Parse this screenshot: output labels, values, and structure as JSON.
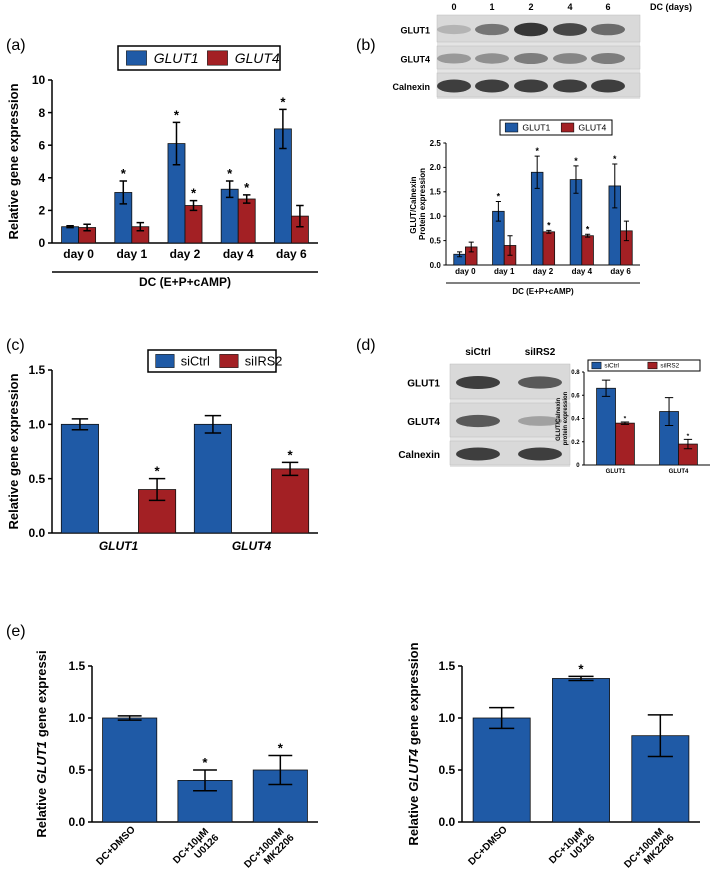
{
  "panels": [
    "(a)",
    "(b)",
    "(c)",
    "(d)",
    "(e)"
  ],
  "blots": [
    {
      "columns_title": "DC (days)",
      "columns": [
        "0",
        "1",
        "2",
        "4",
        "6"
      ],
      "rows": [
        "GLUT1",
        "GLUT4",
        "Calnexin"
      ]
    },
    {
      "columns": [
        "siCtrl",
        "siIRS2"
      ],
      "rows": [
        "GLUT1",
        "GLUT4",
        "Calnexin"
      ]
    }
  ],
  "chart_data": [
    {
      "type": "bar",
      "categories": [
        "day 0",
        "day 1",
        "day 2",
        "day 4",
        "day 6"
      ],
      "ylabel": "Relative gene expression",
      "xlabel": "DC (E+P+cAMP)",
      "ylim": [
        0,
        10
      ],
      "yticks": [
        0,
        2,
        4,
        6,
        8,
        10
      ],
      "series": [
        {
          "name": "GLUT1",
          "color": "#1f5aa6",
          "values": [
            1.0,
            3.1,
            6.1,
            3.3,
            7.0
          ],
          "errors": [
            0.06,
            0.7,
            1.3,
            0.5,
            1.2
          ],
          "annotations": [
            null,
            "*",
            "*",
            "*",
            "*"
          ]
        },
        {
          "name": "GLUT4",
          "color": "#a32024",
          "values": [
            0.95,
            1.0,
            2.3,
            2.7,
            1.65
          ],
          "errors": [
            0.2,
            0.25,
            0.3,
            0.25,
            0.65
          ],
          "annotations": [
            null,
            null,
            "*",
            "*",
            null
          ]
        }
      ]
    },
    {
      "type": "bar",
      "categories": [
        "day 0",
        "day 1",
        "day 2",
        "day 4",
        "day 6"
      ],
      "ylabel": "GLUT/Calnexin Protein expression",
      "xlabel": "DC (E+P+cAMP)",
      "ylim": [
        0,
        2.5
      ],
      "yticks": [
        {
          "value": 0,
          "label": "0.0"
        },
        0.5,
        {
          "value": 1,
          "label": "1.0"
        },
        1.5,
        {
          "value": 2,
          "label": "2.0"
        },
        2.5
      ],
      "series": [
        {
          "name": "GLUT1",
          "color": "#1f5aa6",
          "values": [
            0.22,
            1.1,
            1.9,
            1.75,
            1.62
          ],
          "errors": [
            0.05,
            0.2,
            0.33,
            0.28,
            0.45
          ],
          "annotations": [
            null,
            "*",
            "*",
            "*",
            "*"
          ]
        },
        {
          "name": "GLUT4",
          "color": "#a32024",
          "values": [
            0.37,
            0.4,
            0.68,
            0.6,
            0.7
          ],
          "errors": [
            0.1,
            0.2,
            0.03,
            0.03,
            0.2
          ],
          "annotations": [
            null,
            null,
            "*",
            "*",
            null
          ]
        }
      ]
    },
    {
      "type": "bar",
      "categories": [
        "GLUT1",
        "GLUT4"
      ],
      "ylabel": "Relative gene expression",
      "ylim": [
        0,
        1.5
      ],
      "yticks": [
        {
          "value": 0,
          "label": "0.0"
        },
        0.5,
        {
          "value": 1,
          "label": "1.0"
        },
        1.5
      ],
      "series": [
        {
          "name": "siCtrl",
          "color": "#1f5aa6",
          "values": [
            1.0,
            1.0
          ],
          "errors": [
            0.05,
            0.08
          ],
          "annotations": [
            null,
            null
          ]
        },
        {
          "name": "siIRS2",
          "color": "#a32024",
          "values": [
            0.4,
            0.59
          ],
          "errors": [
            0.1,
            0.06
          ],
          "annotations": [
            "*",
            "*"
          ]
        }
      ]
    },
    {
      "type": "bar",
      "categories": [
        "GLUT1",
        "GLUT4"
      ],
      "ylabel": "GLUT/Calnexin protein expression",
      "ylim": [
        0,
        0.8
      ],
      "yticks": [
        0,
        0.2,
        0.4,
        0.6,
        0.8
      ],
      "series": [
        {
          "name": "siCtrl",
          "color": "#1f5aa6",
          "values": [
            0.66,
            0.46
          ],
          "errors": [
            0.07,
            0.12
          ],
          "annotations": [
            null,
            null
          ]
        },
        {
          "name": "siIRS2",
          "color": "#a32024",
          "values": [
            0.36,
            0.18
          ],
          "errors": [
            0.01,
            0.04
          ],
          "annotations": [
            "*",
            "*"
          ]
        }
      ]
    },
    {
      "type": "bar",
      "categories": [
        "DC+DMSO",
        "DC+10µM U0126",
        "DC+100nM MK2206"
      ],
      "ylabel": [
        "Relative",
        "GLUT1",
        "gene expressi"
      ],
      "ylim": [
        0,
        1.5
      ],
      "yticks": [
        {
          "value": 0,
          "label": "0.0"
        },
        0.5,
        {
          "value": 1,
          "label": "1.0"
        },
        1.5
      ],
      "series": [
        {
          "color": "#1f5aa6",
          "values": [
            1.0,
            0.4,
            0.5
          ],
          "errors": [
            0.02,
            0.1,
            0.14
          ],
          "annotations": [
            null,
            "*",
            "*"
          ]
        }
      ]
    },
    {
      "type": "bar",
      "categories": [
        "DC+DMSO",
        "DC+10µM U0126",
        "DC+100nM MK2206"
      ],
      "ylabel": [
        "Relative",
        "GLUT4",
        "gene expression"
      ],
      "ylim": [
        0,
        1.5
      ],
      "yticks": [
        {
          "value": 0,
          "label": "0.0"
        },
        0.5,
        {
          "value": 1,
          "label": "1.0"
        },
        1.5
      ],
      "series": [
        {
          "color": "#1f5aa6",
          "values": [
            1.0,
            1.38,
            0.83
          ],
          "errors": [
            0.1,
            0.02,
            0.2
          ],
          "annotations": [
            null,
            "*",
            null
          ]
        }
      ]
    }
  ]
}
